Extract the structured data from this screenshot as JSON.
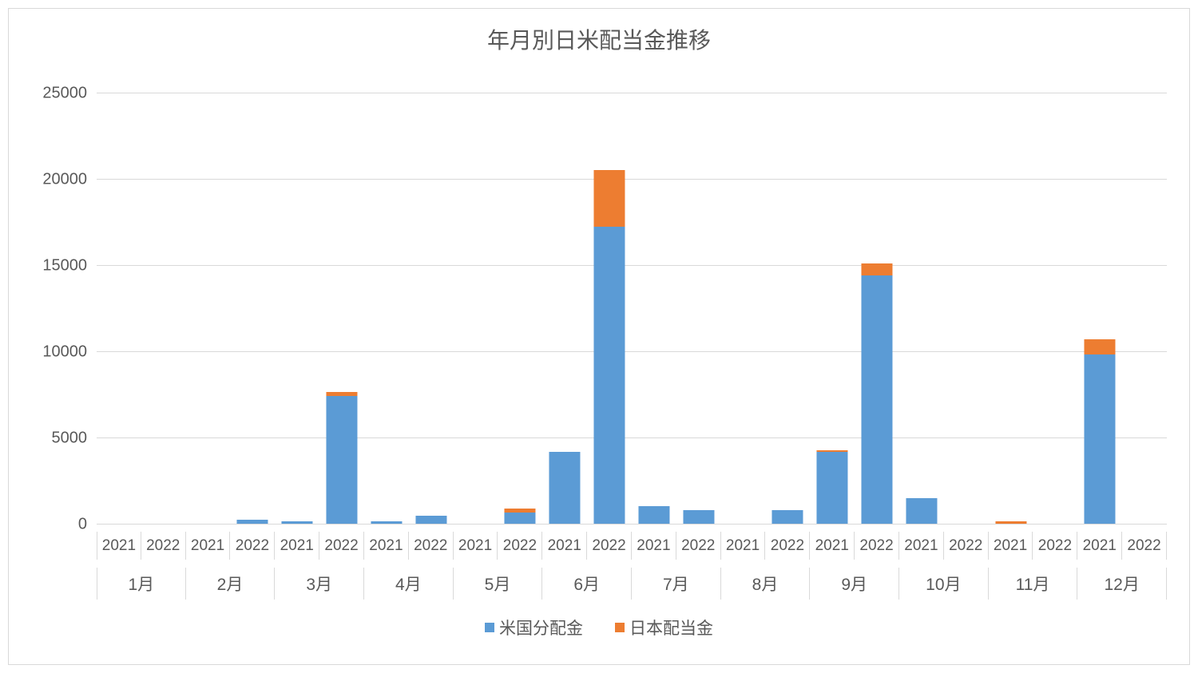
{
  "chart": {
    "type": "stacked-bar",
    "title": "年月別日米配当金推移",
    "title_fontsize": 28,
    "title_color": "#595959",
    "font_family": "Meiryo",
    "background_color": "#ffffff",
    "frame_border_color": "#d9d9d9",
    "grid_color": "#d9d9d9",
    "axis_label_color": "#595959",
    "axis_label_fontsize_year": 19,
    "axis_label_fontsize_month": 21,
    "ylim": [
      0,
      25000
    ],
    "ytick_step": 5000,
    "yticks": [
      0,
      5000,
      10000,
      15000,
      20000,
      25000
    ],
    "bar_width_ratio": 0.7,
    "years": [
      "2021",
      "2022"
    ],
    "months": [
      "1月",
      "2月",
      "3月",
      "4月",
      "5月",
      "6月",
      "7月",
      "8月",
      "9月",
      "10月",
      "11月",
      "12月"
    ],
    "series": [
      {
        "key": "us",
        "label": "米国分配金",
        "color": "#5b9bd5"
      },
      {
        "key": "japan",
        "label": "日本配当金",
        "color": "#ed7d31"
      }
    ],
    "data": [
      {
        "month": "1月",
        "year": "2021",
        "us": 0,
        "japan": 0
      },
      {
        "month": "1月",
        "year": "2022",
        "us": 0,
        "japan": 0
      },
      {
        "month": "2月",
        "year": "2021",
        "us": 0,
        "japan": 0
      },
      {
        "month": "2月",
        "year": "2022",
        "us": 250,
        "japan": 0
      },
      {
        "month": "3月",
        "year": "2021",
        "us": 150,
        "japan": 0
      },
      {
        "month": "3月",
        "year": "2022",
        "us": 7400,
        "japan": 250
      },
      {
        "month": "4月",
        "year": "2021",
        "us": 150,
        "japan": 0
      },
      {
        "month": "4月",
        "year": "2022",
        "us": 450,
        "japan": 0
      },
      {
        "month": "5月",
        "year": "2021",
        "us": 0,
        "japan": 0
      },
      {
        "month": "5月",
        "year": "2022",
        "us": 650,
        "japan": 250
      },
      {
        "month": "6月",
        "year": "2021",
        "us": 4150,
        "japan": 0
      },
      {
        "month": "6月",
        "year": "2022",
        "us": 17200,
        "japan": 3300
      },
      {
        "month": "7月",
        "year": "2021",
        "us": 1000,
        "japan": 0
      },
      {
        "month": "7月",
        "year": "2022",
        "us": 800,
        "japan": 0
      },
      {
        "month": "8月",
        "year": "2021",
        "us": 0,
        "japan": 0
      },
      {
        "month": "8月",
        "year": "2022",
        "us": 800,
        "japan": 0
      },
      {
        "month": "9月",
        "year": "2021",
        "us": 4150,
        "japan": 100
      },
      {
        "month": "9月",
        "year": "2022",
        "us": 14400,
        "japan": 700
      },
      {
        "month": "10月",
        "year": "2021",
        "us": 1500,
        "japan": 0
      },
      {
        "month": "10月",
        "year": "2022",
        "us": 0,
        "japan": 0
      },
      {
        "month": "11月",
        "year": "2021",
        "us": 0,
        "japan": 150
      },
      {
        "month": "11月",
        "year": "2022",
        "us": 0,
        "japan": 0
      },
      {
        "month": "12月",
        "year": "2021",
        "us": 9800,
        "japan": 900
      },
      {
        "month": "12月",
        "year": "2022",
        "us": 0,
        "japan": 0
      }
    ],
    "legend_position": "bottom"
  }
}
